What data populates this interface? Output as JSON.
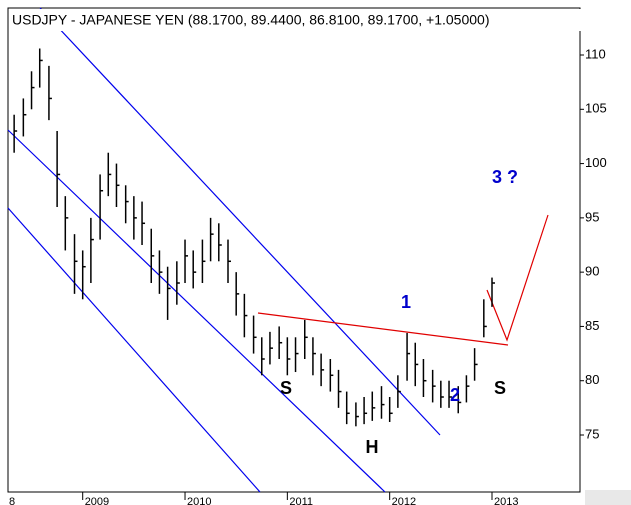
{
  "chart_data": {
    "type": "ohlc",
    "title": "USDJPY - JAPANESE YEN (88.1700, 89.4400, 86.8100, 89.1700, +1.05000)",
    "x": [
      2008.33,
      2008.42,
      2008.5,
      2008.58,
      2008.67,
      2008.75,
      2008.83,
      2008.92,
      2009.0,
      2009.08,
      2009.17,
      2009.25,
      2009.33,
      2009.42,
      2009.5,
      2009.58,
      2009.67,
      2009.75,
      2009.83,
      2009.92,
      2010.0,
      2010.08,
      2010.17,
      2010.25,
      2010.33,
      2010.42,
      2010.5,
      2010.58,
      2010.67,
      2010.75,
      2010.83,
      2010.92,
      2011.0,
      2011.08,
      2011.17,
      2011.25,
      2011.33,
      2011.42,
      2011.5,
      2011.58,
      2011.67,
      2011.75,
      2011.83,
      2011.92,
      2012.0,
      2012.08,
      2012.17,
      2012.25,
      2012.33,
      2012.42,
      2012.5,
      2012.58,
      2012.67,
      2012.75,
      2012.83,
      2012.92,
      2013.0
    ],
    "series": [
      {
        "name": "high",
        "values": [
          104.5,
          106,
          108.5,
          110.6,
          109,
          103,
          97,
          93.5,
          92,
          95,
          99,
          101,
          100,
          98,
          97,
          96.5,
          94,
          92,
          90.5,
          91,
          93,
          92,
          93,
          95,
          94.5,
          93,
          90,
          88,
          86,
          84,
          84.5,
          85,
          84,
          84,
          85.6,
          84,
          82.5,
          82,
          81,
          79,
          78,
          78.5,
          79,
          79.5,
          78.5,
          80.5,
          84.4,
          83.5,
          82,
          81,
          80,
          80,
          79.5,
          80.5,
          83,
          87.5,
          89.5
        ]
      },
      {
        "name": "low",
        "values": [
          101,
          102.5,
          105,
          107,
          104,
          96,
          92,
          88,
          87.5,
          89,
          93,
          97,
          96,
          94.5,
          93,
          92.5,
          89,
          88,
          85.6,
          87,
          89,
          88.5,
          89,
          91,
          91,
          89,
          86,
          84,
          82.5,
          80.5,
          81.5,
          82,
          80.5,
          80.8,
          82,
          80.5,
          79.5,
          79,
          77.5,
          76,
          75.8,
          76,
          76.3,
          76.5,
          76.2,
          77.5,
          80,
          79.5,
          78.5,
          78,
          77.5,
          77.5,
          77,
          78,
          80,
          84,
          86.8
        ]
      },
      {
        "name": "close",
        "values": [
          103,
          104.5,
          107,
          109.5,
          106,
          99,
          95,
          91,
          90.5,
          93,
          97.5,
          99,
          98,
          96.5,
          95,
          94.5,
          91.5,
          90,
          88.5,
          89,
          91.5,
          90,
          91,
          93.5,
          92.5,
          91,
          88,
          86,
          84,
          82,
          83,
          83.5,
          82,
          82.5,
          84,
          82.5,
          81,
          80.5,
          79,
          77,
          76.7,
          77,
          77.5,
          77.8,
          77,
          79,
          82.5,
          81.5,
          80,
          79.5,
          78.5,
          78.5,
          78,
          79.5,
          81.5,
          85,
          89
        ]
      }
    ],
    "color": "#000000",
    "xlim": [
      2008.27,
      2013.86
    ],
    "xticks": [
      {
        "value": 2008,
        "label": "8"
      },
      2009,
      2010,
      2011,
      2012,
      2013
    ],
    "ylim": [
      69.75,
      114.33
    ],
    "yticks": [
      75,
      80,
      85,
      90,
      95,
      100,
      105,
      110
    ],
    "annotations": [
      "S",
      "H",
      "S",
      "1",
      "2",
      "3 ?"
    ]
  }
}
